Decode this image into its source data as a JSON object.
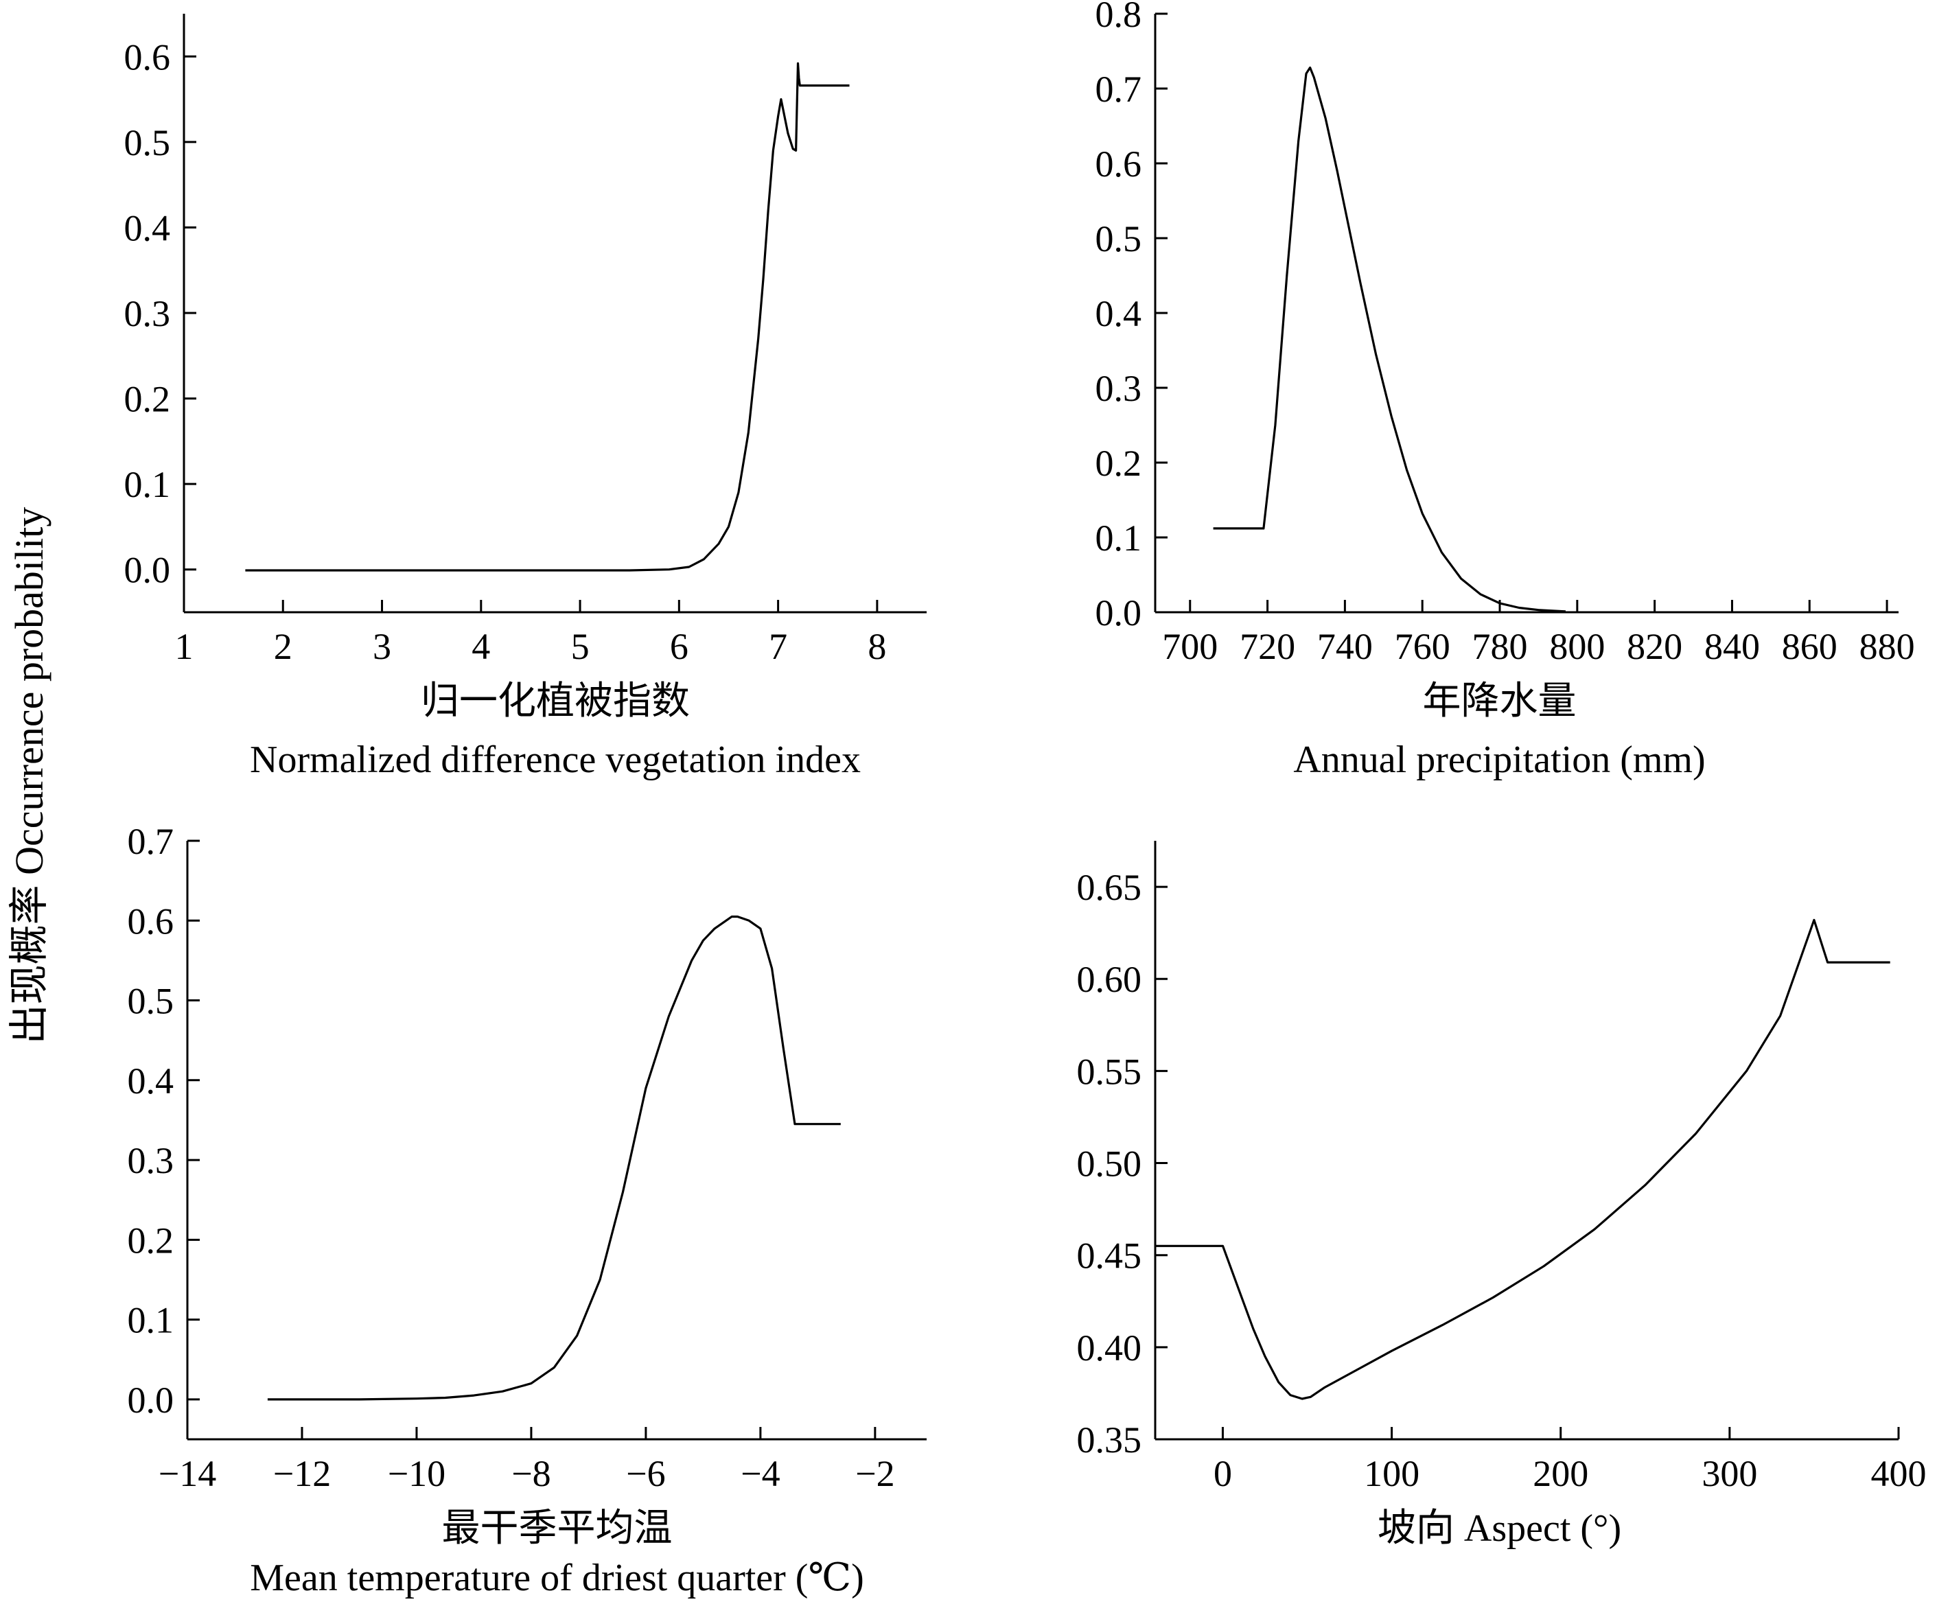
{
  "figure": {
    "ylabel": "出现概率 Occurrence probability",
    "line_color": "#000000",
    "background": "#ffffff"
  },
  "chart_data": [
    {
      "type": "line",
      "xlabel": "归一化植被指数",
      "xlabel_en": "Normalized difference vegetation index",
      "xlim": [
        1,
        8.5
      ],
      "ylim": [
        -0.05,
        0.65
      ],
      "xticks": [
        1,
        2,
        3,
        4,
        5,
        6,
        7,
        8
      ],
      "xtick_labels": [
        "1",
        "2",
        "3",
        "4",
        "5",
        "6",
        "7",
        "8"
      ],
      "yticks": [
        0.0,
        0.1,
        0.2,
        0.3,
        0.4,
        0.5,
        0.6
      ],
      "ytick_labels": [
        "0.0",
        "0.1",
        "0.2",
        "0.3",
        "0.4",
        "0.5",
        "0.6"
      ],
      "series": [
        {
          "x": [
            1.62,
            3.0,
            4.5,
            5.5,
            5.9,
            6.1,
            6.25,
            6.4,
            6.5,
            6.6,
            6.7,
            6.8,
            6.85,
            6.9,
            6.95,
            7.0,
            7.03,
            7.1,
            7.15,
            7.18,
            7.2,
            7.21,
            7.22,
            7.72
          ],
          "y": [
            -0.001,
            -0.001,
            -0.001,
            -0.001,
            0.0,
            0.003,
            0.012,
            0.03,
            0.05,
            0.09,
            0.16,
            0.27,
            0.34,
            0.42,
            0.49,
            0.53,
            0.55,
            0.51,
            0.492,
            0.49,
            0.592,
            0.575,
            0.566,
            0.566
          ]
        }
      ]
    },
    {
      "type": "line",
      "xlabel": "年降水量",
      "xlabel_en": "Annual precipitation (mm)",
      "xlim": [
        691,
        883
      ],
      "ylim": [
        0,
        0.8
      ],
      "xticks": [
        700,
        720,
        740,
        760,
        780,
        800,
        820,
        840,
        860,
        880
      ],
      "xtick_labels": [
        "700",
        "720",
        "740",
        "760",
        "780",
        "800",
        "820",
        "840",
        "860",
        "880"
      ],
      "yticks": [
        0.0,
        0.1,
        0.2,
        0.3,
        0.4,
        0.5,
        0.6,
        0.7,
        0.8
      ],
      "ytick_labels": [
        "0.0",
        "0.1",
        "0.2",
        "0.3",
        "0.4",
        "0.5",
        "0.6",
        "0.7",
        "0.8"
      ],
      "series": [
        {
          "x": [
            706,
            719,
            722,
            725,
            728,
            730,
            731,
            732,
            735,
            738,
            740,
            744,
            748,
            752,
            756,
            760,
            765,
            770,
            775,
            780,
            785,
            790,
            797
          ],
          "y": [
            0.112,
            0.112,
            0.25,
            0.45,
            0.63,
            0.72,
            0.728,
            0.715,
            0.66,
            0.59,
            0.54,
            0.44,
            0.345,
            0.262,
            0.19,
            0.132,
            0.08,
            0.045,
            0.024,
            0.012,
            0.006,
            0.003,
            0.001
          ]
        }
      ]
    },
    {
      "type": "line",
      "xlabel": "最干季平均温",
      "xlabel_en": "Mean temperature of driest quarter (℃)",
      "xlim": [
        -14,
        -1.1
      ],
      "ylim": [
        -0.05,
        0.7
      ],
      "xticks": [
        -14,
        -12,
        -10,
        -8,
        -6,
        -4,
        -2
      ],
      "xtick_labels": [
        "−14",
        "−12",
        "−10",
        "−8",
        "−6",
        "−4",
        "−2"
      ],
      "yticks": [
        0.0,
        0.1,
        0.2,
        0.3,
        0.4,
        0.5,
        0.6,
        0.7
      ],
      "ytick_labels": [
        "0.0",
        "0.1",
        "0.2",
        "0.3",
        "0.4",
        "0.5",
        "0.6",
        "0.7"
      ],
      "series": [
        {
          "x": [
            -12.6,
            -11.0,
            -10.0,
            -9.5,
            -9.0,
            -8.5,
            -8.0,
            -7.6,
            -7.2,
            -6.8,
            -6.4,
            -6.0,
            -5.6,
            -5.2,
            -5.0,
            -4.8,
            -4.6,
            -4.5,
            -4.4,
            -4.2,
            -4.0,
            -3.8,
            -3.6,
            -3.4,
            -3.3,
            -2.6
          ],
          "y": [
            0.0,
            0.0,
            0.001,
            0.002,
            0.005,
            0.01,
            0.02,
            0.04,
            0.08,
            0.15,
            0.26,
            0.39,
            0.48,
            0.55,
            0.575,
            0.59,
            0.6,
            0.605,
            0.605,
            0.6,
            0.59,
            0.54,
            0.44,
            0.345,
            0.345,
            0.345
          ]
        }
      ]
    },
    {
      "type": "line",
      "xlabel": "坡向 Aspect (°)",
      "xlabel_en": "",
      "xlim": [
        -40,
        400
      ],
      "ylim": [
        0.35,
        0.675
      ],
      "xticks": [
        0,
        100,
        200,
        300,
        400
      ],
      "xtick_labels": [
        "0",
        "100",
        "200",
        "300",
        "400"
      ],
      "yticks": [
        0.35,
        0.4,
        0.45,
        0.5,
        0.55,
        0.6,
        0.65
      ],
      "ytick_labels": [
        "0.35",
        "0.40",
        "0.45",
        "0.50",
        "0.55",
        "0.60",
        "0.65"
      ],
      "series": [
        {
          "x": [
            -40,
            0,
            10,
            18,
            25,
            33,
            40,
            47,
            52,
            60,
            80,
            100,
            130,
            160,
            190,
            220,
            250,
            280,
            310,
            330,
            350,
            358,
            395
          ],
          "y": [
            0.455,
            0.455,
            0.43,
            0.41,
            0.395,
            0.381,
            0.374,
            0.372,
            0.373,
            0.378,
            0.388,
            0.398,
            0.412,
            0.427,
            0.444,
            0.464,
            0.488,
            0.516,
            0.55,
            0.58,
            0.632,
            0.609,
            0.609
          ]
        }
      ]
    }
  ]
}
